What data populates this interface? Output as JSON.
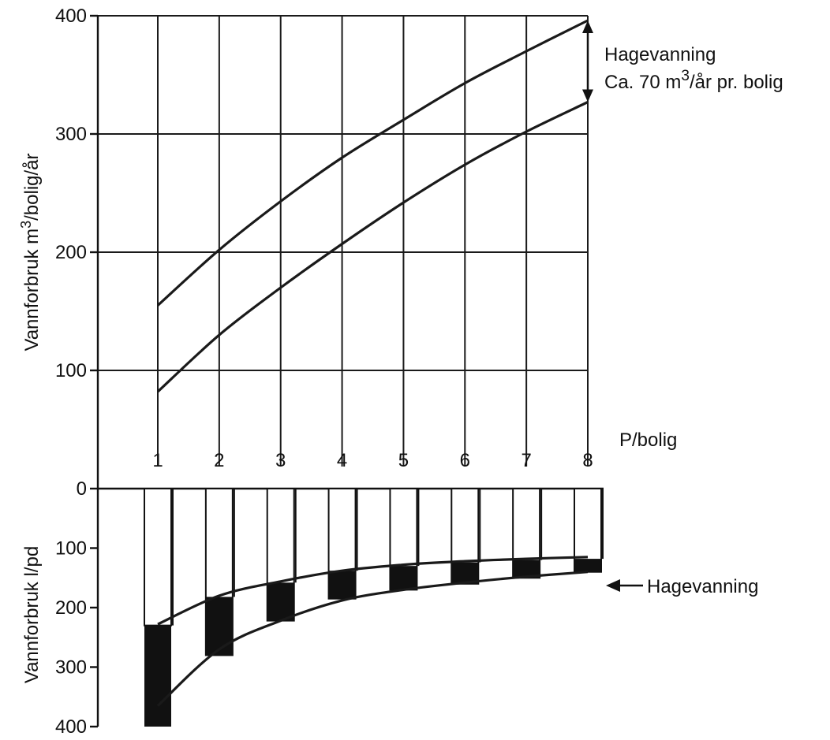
{
  "chart_data": [
    {
      "type": "line",
      "ylabel_parts": [
        "Vannforbruk m",
        "3",
        "/bolig/år"
      ],
      "x_label": "P/bolig",
      "x_ticks": [
        "1",
        "2",
        "3",
        "4",
        "5",
        "6",
        "7",
        "8"
      ],
      "y_ticks": [
        "0",
        "100",
        "200",
        "300",
        "400"
      ],
      "ylim": [
        0,
        400
      ],
      "xlim": [
        1,
        8
      ],
      "grid": true,
      "x": [
        1,
        2,
        3,
        4,
        5,
        6,
        7,
        8
      ],
      "series": [
        {
          "values": [
            155,
            202,
            243,
            280,
            312,
            343,
            370,
            396
          ]
        },
        {
          "values": [
            82,
            130,
            170,
            207,
            242,
            274,
            302,
            327
          ]
        }
      ],
      "annotation": {
        "line1": "Hagevanning",
        "line2_parts": [
          "Ca. 70 m",
          "3",
          "/år pr. bolig"
        ]
      }
    },
    {
      "type": "bar",
      "ylabel": "Vannforbruk l/pd",
      "y_ticks": [
        "100",
        "200",
        "300",
        "400"
      ],
      "ylim": [
        0,
        400
      ],
      "y_inverted": true,
      "categories": [
        "1",
        "2",
        "3",
        "4",
        "5",
        "6",
        "7",
        "8"
      ],
      "bars_outline": [
        230,
        280,
        222,
        185,
        170,
        160,
        150,
        140
      ],
      "hagevanning_band": [
        {
          "from": 230,
          "to": 400
        },
        {
          "from": 182,
          "to": 280
        },
        {
          "from": 158,
          "to": 222
        },
        {
          "from": 138,
          "to": 185
        },
        {
          "from": 130,
          "to": 170
        },
        {
          "from": 124,
          "to": 160
        },
        {
          "from": 120,
          "to": 150
        },
        {
          "from": 118,
          "to": 140
        }
      ],
      "upper_curve": [
        228,
        180,
        156,
        138,
        128,
        122,
        118,
        115
      ],
      "lower_curve": [
        365,
        270,
        222,
        188,
        170,
        158,
        148,
        140
      ],
      "annotation": "Hagevanning"
    }
  ]
}
